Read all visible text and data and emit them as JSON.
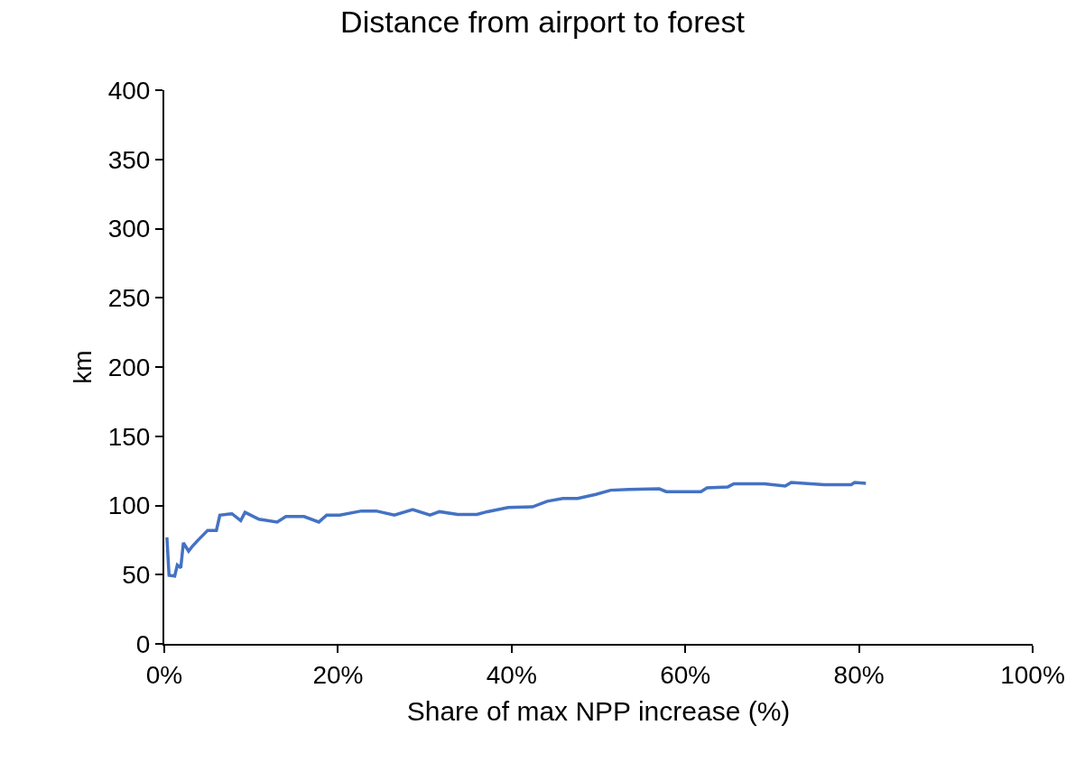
{
  "chart_data": {
    "type": "line",
    "title": "Distance from airport to forest",
    "xlabel": "Share of max NPP increase (%)",
    "ylabel": "km",
    "xlim": [
      0,
      100
    ],
    "xticks": [
      {
        "value": 0,
        "label": "0%"
      },
      {
        "value": 20,
        "label": "20%"
      },
      {
        "value": 40,
        "label": "40%"
      },
      {
        "value": 60,
        "label": "60%"
      },
      {
        "value": 80,
        "label": "80%"
      },
      {
        "value": 100,
        "label": "100%"
      }
    ],
    "ylim": [
      0,
      400
    ],
    "yticks": [
      0,
      50,
      100,
      150,
      200,
      250,
      300,
      350,
      400
    ],
    "marker": "none",
    "line_style": "solid",
    "series": [
      {
        "color": "#4472c4",
        "x": [
          0.3,
          0.55,
          1.2,
          1.5,
          1.9,
          2.2,
          2.8,
          3.3,
          3.9,
          5,
          6,
          6.4,
          7.8,
          8.8,
          9.3,
          10.9,
          13,
          14,
          16.1,
          17.8,
          18.7,
          20.2,
          22.7,
          24.4,
          26.5,
          28.6,
          30.6,
          31.7,
          33.8,
          36,
          37.2,
          39.6,
          42.4,
          44.1,
          45.9,
          47.6,
          49.7,
          51.4,
          53.5,
          57,
          57.8,
          61.8,
          62.5,
          64.9,
          65.6,
          69.1,
          71.5,
          72.2,
          76,
          79.1,
          79.5,
          80.8
        ],
        "values": [
          77,
          49.5,
          49,
          57,
          55,
          73,
          67,
          71,
          75,
          82,
          82,
          93,
          94,
          89,
          95,
          90,
          88,
          92,
          92,
          88,
          93,
          93,
          96,
          96,
          93,
          97,
          93,
          95.5,
          93.5,
          93.5,
          95.5,
          98.5,
          99,
          103,
          105,
          105,
          108,
          111,
          111.5,
          112,
          110,
          110,
          112.7,
          113.4,
          115.6,
          115.6,
          114,
          116.6,
          115,
          115,
          116.6,
          116
        ]
      }
    ]
  }
}
